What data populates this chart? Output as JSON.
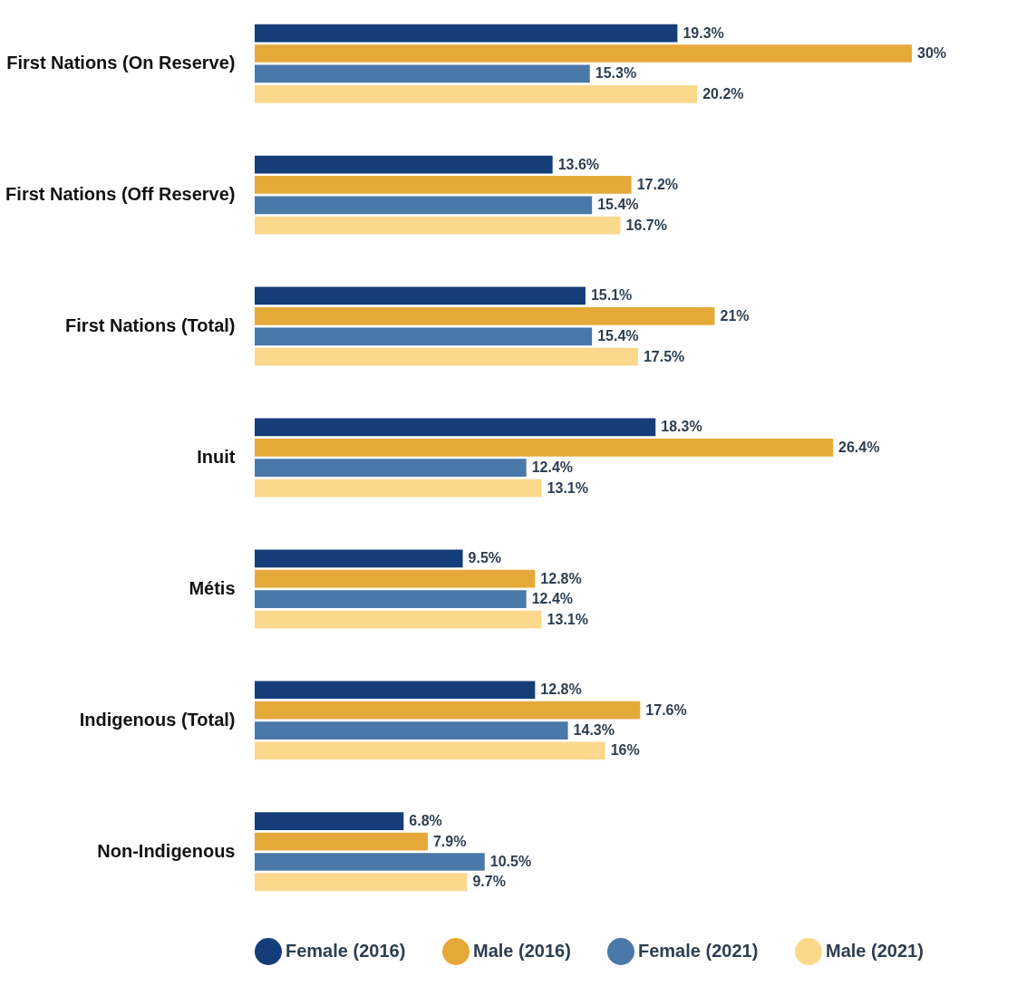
{
  "chart_data": {
    "type": "bar",
    "orientation": "horizontal",
    "legend": "bottom",
    "categories": [
      "First Nations (On Reserve)",
      "First Nations (Off Reserve)",
      "First Nations (Total)",
      "Inuit",
      "Métis",
      "Indigenous (Total)",
      "Non-Indigenous"
    ],
    "series": [
      {
        "name": "Female (2016)",
        "color": "#143d7a",
        "values": [
          19.3,
          13.6,
          15.1,
          18.3,
          9.5,
          12.8,
          6.8
        ],
        "value_labels": [
          "19.3%",
          "13.6%",
          "15.1%",
          "18.3%",
          "9.5%",
          "12.8%",
          "6.8%"
        ]
      },
      {
        "name": "Male (2016)",
        "color": "#e5a93a",
        "values": [
          30,
          17.2,
          21,
          26.4,
          12.8,
          17.6,
          7.9
        ],
        "value_labels": [
          "30%",
          "17.2%",
          "21%",
          "26.4%",
          "12.8%",
          "17.6%",
          "7.9%"
        ]
      },
      {
        "name": "Female (2021)",
        "color": "#4a78a8",
        "values": [
          15.3,
          15.4,
          15.4,
          12.4,
          12.4,
          14.3,
          10.5
        ],
        "value_labels": [
          "15.3%",
          "15.4%",
          "15.4%",
          "12.4%",
          "12.4%",
          "14.3%",
          "10.5%"
        ]
      },
      {
        "name": "Male (2021)",
        "color": "#fbd88c",
        "values": [
          20.2,
          16.7,
          17.5,
          13.1,
          13.1,
          16,
          9.7
        ],
        "value_labels": [
          "20.2%",
          "16.7%",
          "17.5%",
          "13.1%",
          "13.1%",
          "16%",
          "9.7%"
        ]
      }
    ]
  }
}
